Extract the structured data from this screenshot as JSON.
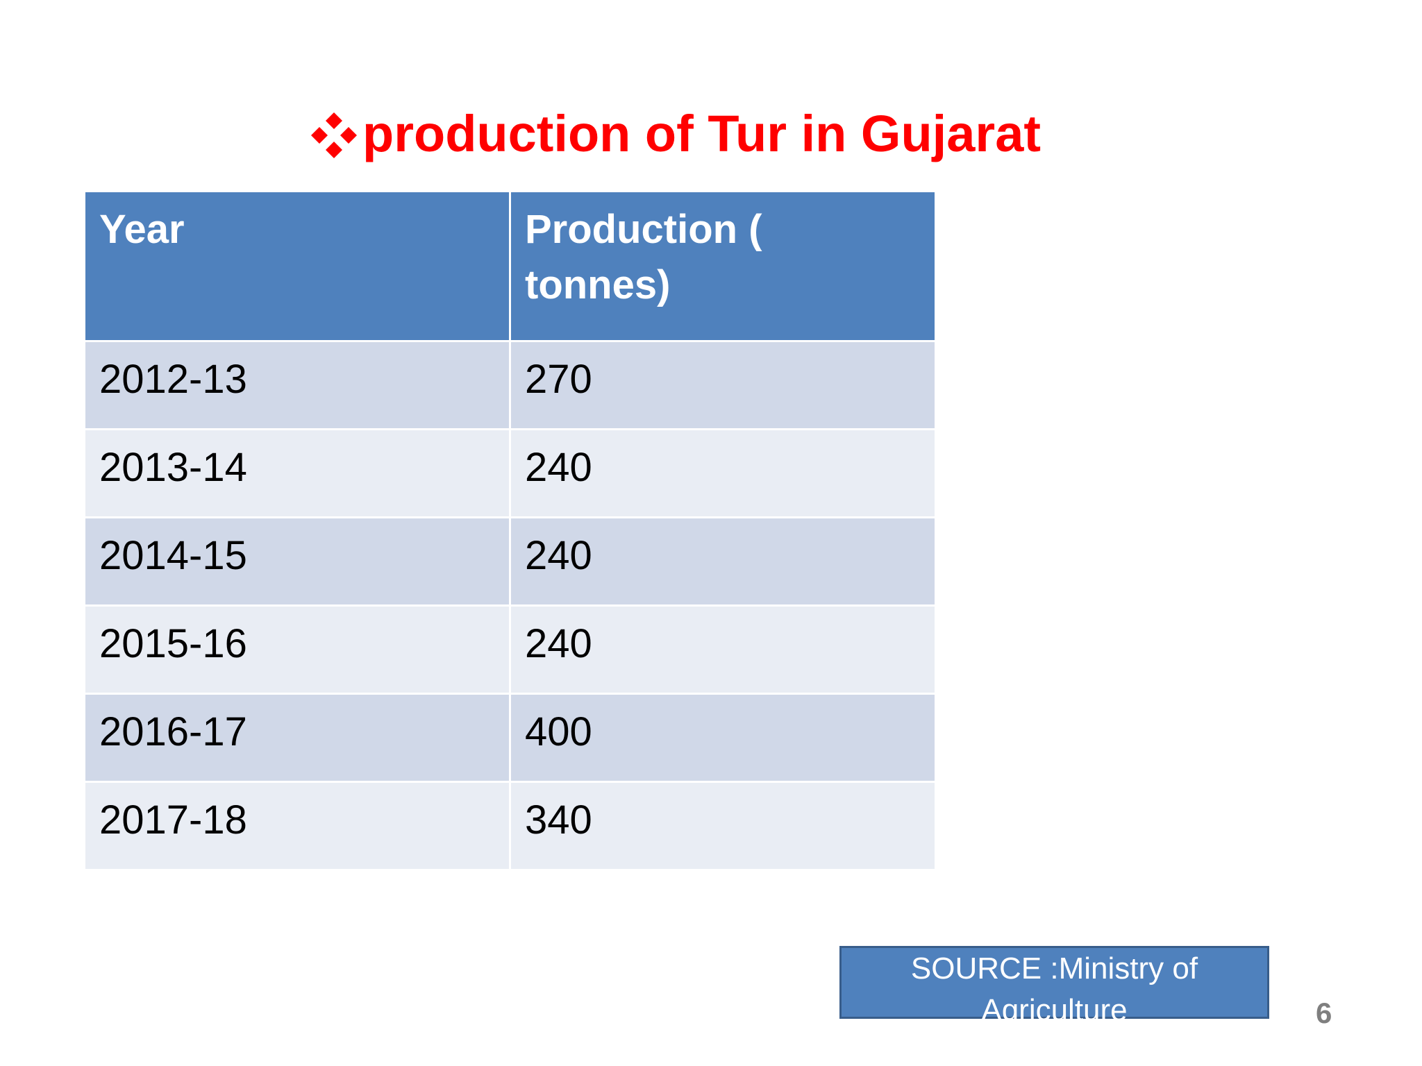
{
  "title": "production of Tur in Gujarat",
  "table": {
    "header": [
      "Year",
      "Production ( tonnes)"
    ],
    "rows": [
      [
        "2012-13",
        270
      ],
      [
        "2013-14",
        240
      ],
      [
        "2014-15",
        240
      ],
      [
        "2015-16",
        240
      ],
      [
        "2016-17",
        400
      ],
      [
        "2017-18",
        340
      ]
    ]
  },
  "source": "SOURCE :Ministry of Agriculture",
  "page_number": "6"
}
